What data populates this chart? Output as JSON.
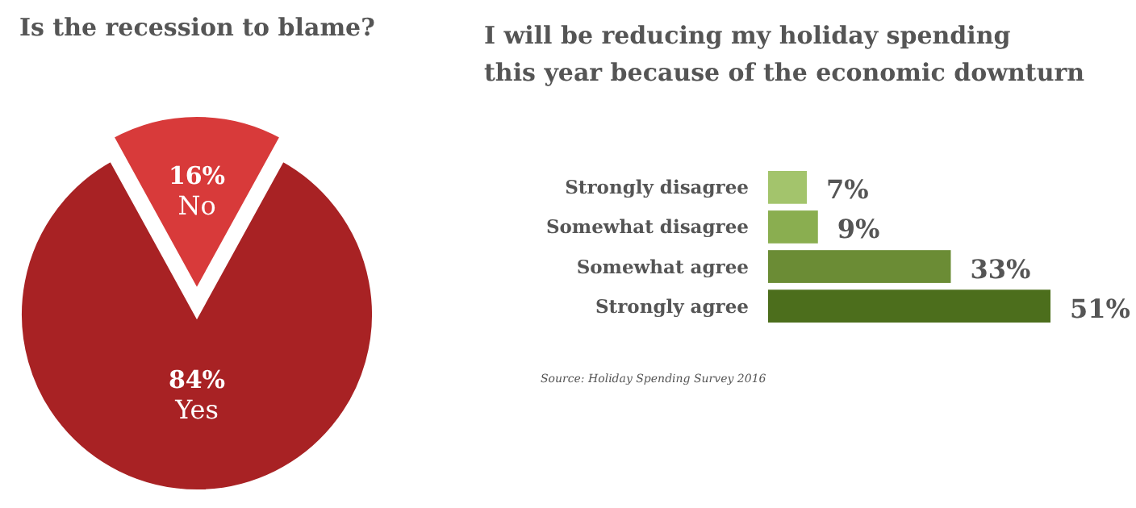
{
  "chart_data": [
    {
      "type": "pie",
      "title": "Is the recession to blame?",
      "categories": [
        "Yes",
        "No"
      ],
      "values": [
        84,
        16
      ],
      "colors": [
        "#a82224",
        "#d83a3a"
      ],
      "value_labels": [
        "84%",
        "16%"
      ]
    },
    {
      "type": "bar",
      "orientation": "horizontal",
      "title": "I will be reducing my holiday spending this year because of the economic downturn",
      "categories": [
        "Strongly disagree",
        "Somewhat disagree",
        "Somewhat agree",
        "Strongly agree"
      ],
      "values": [
        7,
        9,
        33,
        51
      ],
      "colors": [
        "#a3c46c",
        "#8aae50",
        "#6b8c35",
        "#4c6e1c"
      ],
      "value_labels": [
        "7%",
        "9%",
        "33%",
        "51%"
      ],
      "annotations": [
        "Source: Holiday Spending Survey 2016"
      ]
    }
  ]
}
